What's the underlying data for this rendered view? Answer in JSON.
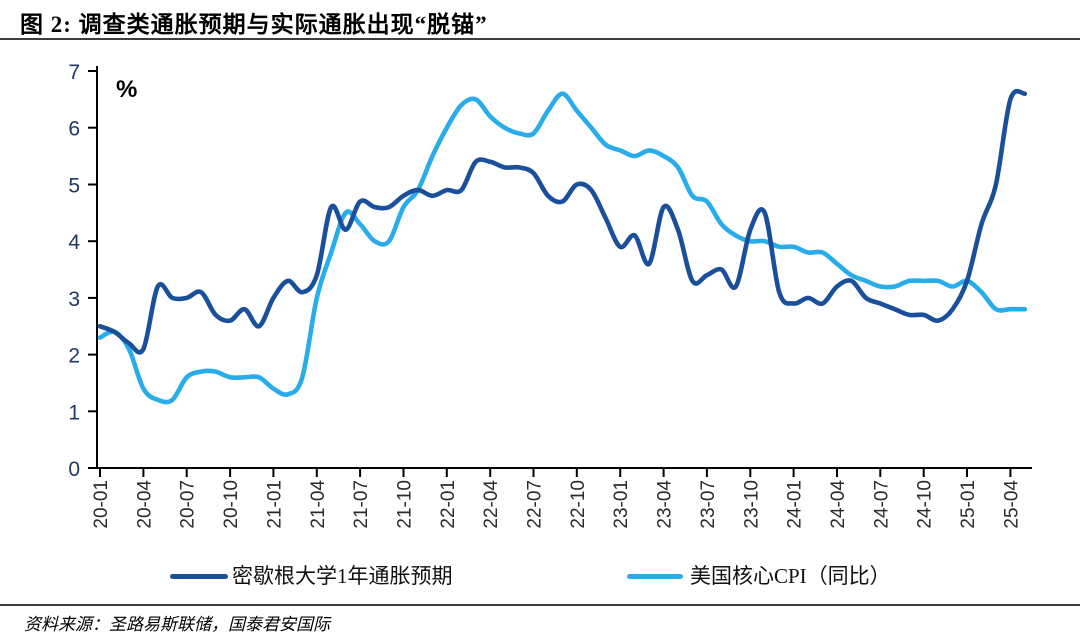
{
  "figure": {
    "title": "图 2: 调查类通胀预期与实际通胀出现“脱锚”",
    "unit_label": "%",
    "source": "资料来源：圣路易斯联储，国泰君安国际"
  },
  "colors": {
    "michigan_line": "#1A4F9C",
    "core_cpi_line": "#29ADEA",
    "axis": "#000000",
    "divider": "#3d3d3d",
    "y_tick_label": "#1F3864",
    "x_tick_label": "#2b2b2b"
  },
  "chart_data": {
    "type": "line",
    "title": "调查类通胀预期与实际通胀出现“脱锚”",
    "xlabel": "",
    "ylabel": "%",
    "ylim": [
      0,
      7
    ],
    "y_ticks": [
      0,
      1,
      2,
      3,
      4,
      5,
      6,
      7
    ],
    "grid": false,
    "legend_position": "bottom",
    "x_tick_labels": [
      "20-01",
      "20-04",
      "20-07",
      "20-10",
      "21-01",
      "21-04",
      "21-07",
      "21-10",
      "22-01",
      "22-04",
      "22-07",
      "22-10",
      "23-01",
      "23-04",
      "23-07",
      "23-10",
      "24-01",
      "24-04",
      "24-07",
      "24-10",
      "25-01",
      "25-04"
    ],
    "x": [
      "20-01",
      "20-02",
      "20-03",
      "20-04",
      "20-05",
      "20-06",
      "20-07",
      "20-08",
      "20-09",
      "20-10",
      "20-11",
      "20-12",
      "21-01",
      "21-02",
      "21-03",
      "21-04",
      "21-05",
      "21-06",
      "21-07",
      "21-08",
      "21-09",
      "21-10",
      "21-11",
      "21-12",
      "22-01",
      "22-02",
      "22-03",
      "22-04",
      "22-05",
      "22-06",
      "22-07",
      "22-08",
      "22-09",
      "22-10",
      "22-11",
      "22-12",
      "23-01",
      "23-02",
      "23-03",
      "23-04",
      "23-05",
      "23-06",
      "23-07",
      "23-08",
      "23-09",
      "23-10",
      "23-11",
      "23-12",
      "24-01",
      "24-02",
      "24-03",
      "24-04",
      "24-05",
      "24-06",
      "24-07",
      "24-08",
      "24-09",
      "24-10",
      "24-11",
      "24-12",
      "25-01",
      "25-02",
      "25-03",
      "25-04",
      "25-05"
    ],
    "series": [
      {
        "name": "密歇根大学1年通胀预期",
        "color": "#1A4F9C",
        "values": [
          2.5,
          2.4,
          2.2,
          2.1,
          3.2,
          3.0,
          3.0,
          3.1,
          2.7,
          2.6,
          2.8,
          2.5,
          3.0,
          3.3,
          3.1,
          3.4,
          4.6,
          4.2,
          4.7,
          4.6,
          4.6,
          4.8,
          4.9,
          4.8,
          4.9,
          4.9,
          5.4,
          5.4,
          5.3,
          5.3,
          5.2,
          4.8,
          4.7,
          5.0,
          4.9,
          4.4,
          3.9,
          4.1,
          3.6,
          4.6,
          4.2,
          3.3,
          3.4,
          3.5,
          3.2,
          4.2,
          4.5,
          3.1,
          2.9,
          3.0,
          2.9,
          3.2,
          3.3,
          3.0,
          2.9,
          2.8,
          2.7,
          2.7,
          2.6,
          2.8,
          3.3,
          4.3,
          5.0,
          6.5,
          6.6
        ]
      },
      {
        "name": "美国核心CPI（同比）",
        "color": "#29ADEA",
        "values": [
          2.3,
          2.4,
          2.1,
          1.4,
          1.2,
          1.2,
          1.6,
          1.7,
          1.7,
          1.6,
          1.6,
          1.6,
          1.4,
          1.3,
          1.6,
          3.0,
          3.8,
          4.5,
          4.3,
          4.0,
          4.0,
          4.6,
          4.9,
          5.5,
          6.0,
          6.4,
          6.5,
          6.2,
          6.0,
          5.9,
          5.9,
          6.3,
          6.6,
          6.3,
          6.0,
          5.7,
          5.6,
          5.5,
          5.6,
          5.5,
          5.3,
          4.8,
          4.7,
          4.3,
          4.1,
          4.0,
          4.0,
          3.9,
          3.9,
          3.8,
          3.8,
          3.6,
          3.4,
          3.3,
          3.2,
          3.2,
          3.3,
          3.3,
          3.3,
          3.2,
          3.3,
          3.1,
          2.8,
          2.8,
          2.8
        ]
      }
    ]
  }
}
